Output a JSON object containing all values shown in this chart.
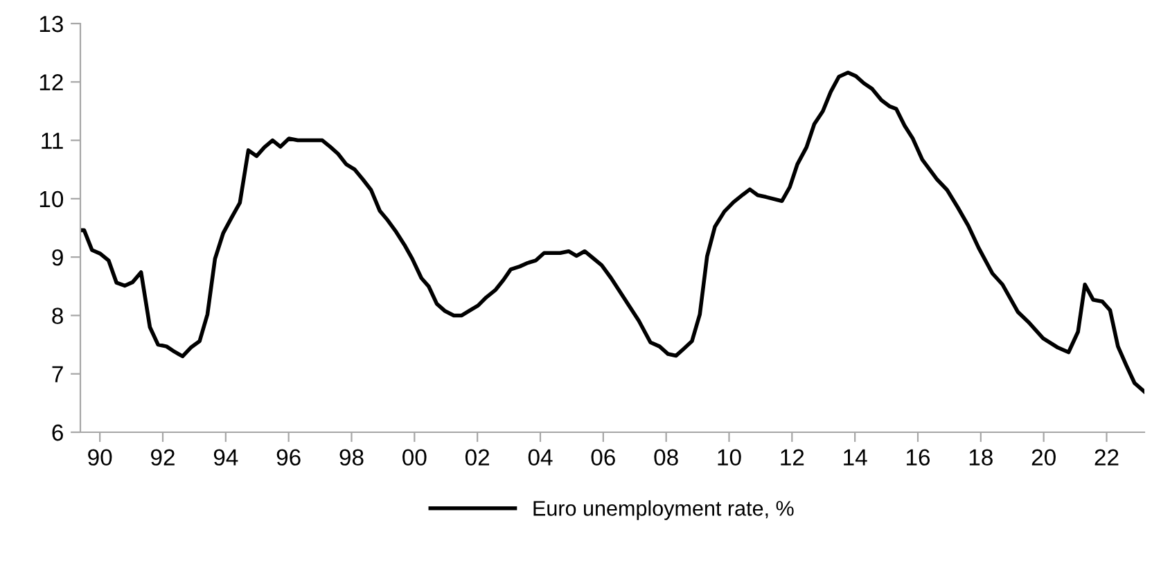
{
  "chart_data": {
    "type": "line",
    "legend": "bottom",
    "grid": false,
    "marker": "none",
    "line_style": "solid",
    "xlim": [
      1989.38,
      2023.2
    ],
    "ylim": [
      6,
      13
    ],
    "yticks": [
      6,
      7,
      8,
      9,
      10,
      11,
      12,
      13
    ],
    "xticks": [
      {
        "value": 1990,
        "label": "90"
      },
      {
        "value": 1992,
        "label": "92"
      },
      {
        "value": 1994,
        "label": "94"
      },
      {
        "value": 1996,
        "label": "96"
      },
      {
        "value": 1998,
        "label": "98"
      },
      {
        "value": 2000,
        "label": "00"
      },
      {
        "value": 2002,
        "label": "02"
      },
      {
        "value": 2004,
        "label": "04"
      },
      {
        "value": 2006,
        "label": "06"
      },
      {
        "value": 2008,
        "label": "08"
      },
      {
        "value": 2010,
        "label": "10"
      },
      {
        "value": 2012,
        "label": "12"
      },
      {
        "value": 2014,
        "label": "14"
      },
      {
        "value": 2016,
        "label": "16"
      },
      {
        "value": 2018,
        "label": "18"
      },
      {
        "value": 2020,
        "label": "20"
      },
      {
        "value": 2022,
        "label": "22"
      }
    ],
    "series": [
      {
        "name": "Euro unemployment rate, %",
        "color": "#000000",
        "x": [
          1989.38,
          1989.5,
          1989.75,
          1990.01,
          1990.28,
          1990.53,
          1990.79,
          1991.04,
          1991.31,
          1991.59,
          1991.85,
          1992.12,
          1992.37,
          1992.63,
          1992.89,
          1993.17,
          1993.42,
          1993.66,
          1993.92,
          1994.19,
          1994.45,
          1994.72,
          1994.98,
          1995.23,
          1995.49,
          1995.74,
          1996.01,
          1996.29,
          1997.07,
          1997.32,
          1997.57,
          1997.83,
          1998.1,
          1998.36,
          1998.62,
          1998.9,
          1999.15,
          1999.42,
          1999.68,
          1999.93,
          2000.22,
          2000.45,
          2000.71,
          2000.96,
          2001.25,
          2001.5,
          2001.77,
          2002.02,
          2002.28,
          2002.58,
          2002.83,
          2003.06,
          2003.35,
          2003.6,
          2003.85,
          2004.12,
          2004.63,
          2004.9,
          2005.15,
          2005.41,
          2005.66,
          2005.95,
          2006.25,
          2006.54,
          2006.84,
          2007.13,
          2007.5,
          2007.79,
          2008.06,
          2008.31,
          2008.56,
          2008.82,
          2009.07,
          2009.3,
          2009.55,
          2009.85,
          2010.14,
          2010.44,
          2010.66,
          2010.91,
          2011.17,
          2011.68,
          2011.93,
          2012.17,
          2012.46,
          2012.71,
          2012.98,
          2013.23,
          2013.49,
          2013.78,
          2014.03,
          2014.28,
          2014.55,
          2014.84,
          2015.11,
          2015.31,
          2015.58,
          2015.84,
          2016.14,
          2016.61,
          2016.93,
          2017.27,
          2017.6,
          2017.93,
          2018.37,
          2018.69,
          2019.18,
          2019.51,
          2019.98,
          2020.45,
          2020.79,
          2021.09,
          2021.31,
          2021.57,
          2021.86,
          2022.11,
          2022.36,
          2022.63,
          2022.89,
          2023.19
        ],
        "values": [
          9.46,
          9.46,
          9.12,
          9.06,
          8.94,
          8.56,
          8.51,
          8.57,
          8.74,
          7.8,
          7.5,
          7.47,
          7.38,
          7.3,
          7.45,
          7.56,
          8.02,
          8.97,
          9.41,
          9.68,
          9.93,
          10.83,
          10.73,
          10.88,
          11.0,
          10.89,
          11.03,
          11.0,
          11.0,
          10.89,
          10.77,
          10.59,
          10.5,
          10.33,
          10.15,
          9.79,
          9.63,
          9.43,
          9.21,
          8.97,
          8.64,
          8.5,
          8.2,
          8.08,
          8.0,
          8.0,
          8.09,
          8.17,
          8.31,
          8.44,
          8.61,
          8.79,
          8.84,
          8.9,
          8.94,
          9.07,
          9.07,
          9.1,
          9.02,
          9.1,
          8.99,
          8.86,
          8.64,
          8.4,
          8.15,
          7.91,
          7.54,
          7.47,
          7.34,
          7.31,
          7.43,
          7.56,
          8.02,
          9.01,
          9.52,
          9.78,
          9.94,
          10.07,
          10.16,
          10.06,
          10.03,
          9.96,
          10.2,
          10.59,
          10.88,
          11.28,
          11.5,
          11.83,
          12.09,
          12.16,
          12.1,
          11.98,
          11.88,
          11.69,
          11.58,
          11.54,
          11.25,
          11.03,
          10.67,
          10.33,
          10.15,
          9.85,
          9.54,
          9.16,
          8.72,
          8.53,
          8.06,
          7.89,
          7.61,
          7.45,
          7.37,
          7.72,
          8.53,
          8.27,
          8.24,
          8.09,
          7.47,
          7.14,
          6.84,
          6.7
        ]
      }
    ]
  }
}
